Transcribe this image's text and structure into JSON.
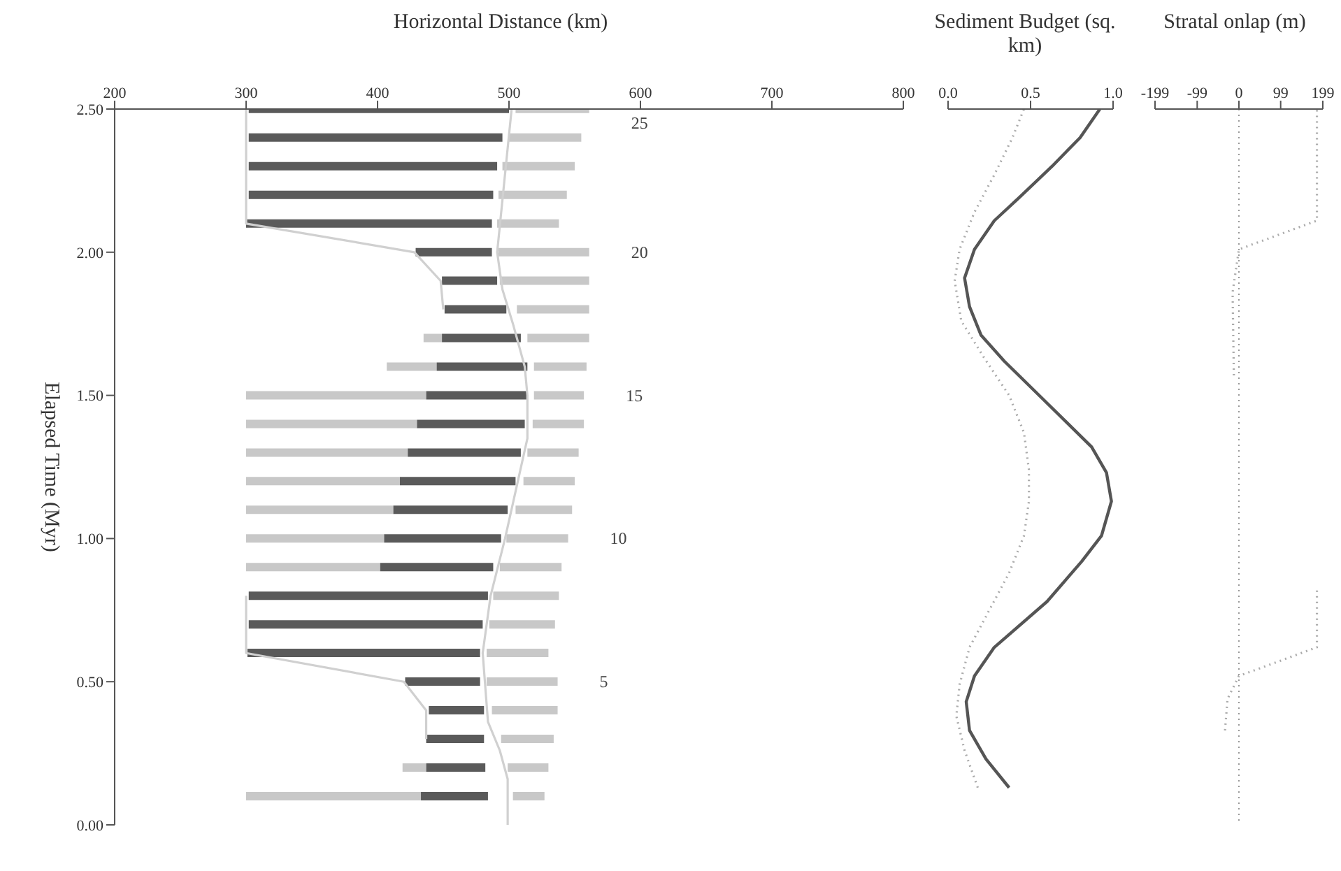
{
  "chart_data": [
    {
      "type": "bar",
      "orientation": "horizontal",
      "xlabel": "Horizontal Distance (km)",
      "ylabel": "Elapsed Time (Myr)",
      "x": [
        0.1,
        0.2,
        0.3,
        0.4,
        0.5,
        0.6,
        0.7,
        0.8,
        0.9,
        1.0,
        1.1,
        1.2,
        1.3,
        1.4,
        1.5,
        1.6,
        1.7,
        1.8,
        1.9,
        2.0,
        2.1,
        2.2,
        2.3,
        2.4,
        2.5
      ],
      "series": [
        {
          "color": "#c8c8c8",
          "base": [
            300,
            419,
            null,
            null,
            null,
            null,
            null,
            null,
            300,
            300,
            300,
            300,
            300,
            300,
            300,
            407,
            435,
            null,
            null,
            null,
            null,
            null,
            null,
            null,
            null
          ],
          "values": [
            133,
            18,
            null,
            null,
            null,
            null,
            null,
            null,
            102,
            105,
            112,
            117,
            123,
            130,
            137,
            38,
            14,
            null,
            null,
            null,
            null,
            null,
            null,
            null,
            null
          ]
        },
        {
          "color": "#5a5a5a",
          "base": [
            433,
            437,
            437,
            439,
            421,
            301,
            302,
            302,
            402,
            405,
            412,
            417,
            423,
            430,
            437,
            445,
            449,
            451,
            449,
            429,
            300,
            302,
            302,
            302,
            302
          ],
          "values": [
            51,
            45,
            44,
            42,
            57,
            177,
            178,
            182,
            86,
            89,
            87,
            88,
            86,
            82,
            77,
            69,
            60,
            47,
            42,
            58,
            187,
            186,
            189,
            193,
            198
          ]
        },
        {
          "color": "#c8c8c8",
          "base": [
            503,
            499,
            494,
            487,
            483,
            483,
            485,
            488,
            493,
            498,
            505,
            511,
            514,
            518,
            519,
            519,
            514,
            506,
            493,
            492,
            491,
            492,
            495,
            500,
            505
          ],
          "values": [
            24,
            31,
            40,
            50,
            54,
            47,
            50,
            50,
            47,
            47,
            43,
            39,
            39,
            39,
            38,
            40,
            47,
            55,
            68,
            69,
            47,
            52,
            55,
            55,
            56
          ]
        },
        {
          "type": "line",
          "color": "#d0d0d0",
          "x": [
            0.3,
            0.4,
            0.5,
            0.6,
            0.8,
            1.3,
            1.8,
            1.9,
            2.0,
            2.1,
            2.5
          ],
          "values": [
            437,
            437,
            420,
            300,
            300,
            null,
            450,
            448,
            428,
            300,
            300
          ]
        },
        {
          "type": "line",
          "color": "#d0d0d0",
          "x": [
            0.0,
            0.16,
            0.26,
            0.36,
            0.6,
            0.8,
            1.0,
            1.35,
            1.5,
            1.6,
            1.75,
            1.87,
            2.0,
            2.5
          ],
          "values": [
            499,
            499,
            493,
            484,
            480,
            486,
            497,
            514,
            514,
            512,
            503,
            495,
            491,
            502
          ]
        }
      ],
      "xlim": [
        200,
        800
      ],
      "xticks": [
        200,
        300,
        400,
        500,
        600,
        700,
        800
      ],
      "ylim": [
        0,
        2.5
      ],
      "yticks": [
        {
          "value": 0,
          "label": "0.00"
        },
        {
          "value": 0.5,
          "label": "0.50"
        },
        {
          "value": 1.0,
          "label": "1.00"
        },
        {
          "value": 1.5,
          "label": "1.50"
        },
        {
          "value": 2.0,
          "label": "2.00"
        },
        {
          "value": 2.5,
          "label": "2.50"
        }
      ],
      "marker": "none",
      "annotations": [
        {
          "text": "5",
          "x": 537,
          "y": 0.5
        },
        {
          "text": "10",
          "x": 545,
          "y": 1.0
        },
        {
          "text": "15",
          "x": 557,
          "y": 1.5
        },
        {
          "text": "20",
          "x": 561,
          "y": 2.0
        },
        {
          "text": "25",
          "x": 561,
          "y": 2.5
        }
      ]
    },
    {
      "type": "line",
      "orientation": "horizontal",
      "xlabel": "Sediment Budget (sq. km)",
      "series": [
        {
          "color": "#555555",
          "line_style": "solid",
          "x": [
            0.13,
            0.23,
            0.33,
            0.43,
            0.52,
            0.62,
            0.78,
            0.92,
            1.01,
            1.13,
            1.23,
            1.32,
            1.49,
            1.62,
            1.71,
            1.81,
            1.91,
            2.01,
            2.11,
            2.19,
            2.3,
            2.4,
            2.5
          ],
          "values": [
            0.37,
            0.23,
            0.13,
            0.11,
            0.16,
            0.28,
            0.6,
            0.81,
            0.93,
            0.99,
            0.96,
            0.87,
            0.57,
            0.34,
            0.2,
            0.13,
            0.1,
            0.16,
            0.28,
            0.43,
            0.63,
            0.8,
            0.92
          ]
        },
        {
          "color": "#aaaaaa",
          "line_style": "dotted",
          "x": [
            0.13,
            0.26,
            0.38,
            0.49,
            0.62,
            0.75,
            0.88,
            1.01,
            1.13,
            1.24,
            1.37,
            1.5,
            1.63,
            1.76,
            1.9,
            2.01,
            2.14,
            2.27,
            2.4,
            2.5
          ],
          "values": [
            0.18,
            0.1,
            0.05,
            0.07,
            0.13,
            0.25,
            0.37,
            0.46,
            0.49,
            0.49,
            0.46,
            0.37,
            0.22,
            0.08,
            0.04,
            0.07,
            0.16,
            0.28,
            0.39,
            0.46
          ]
        }
      ],
      "xlim": [
        0,
        1.0
      ],
      "xticks": [
        {
          "value": 0,
          "label": "0.0"
        },
        {
          "value": 0.5,
          "label": "0.5"
        },
        {
          "value": 1.0,
          "label": "1.0"
        }
      ],
      "ylim": [
        0,
        2.5
      ],
      "tick_labels": "x",
      "marker": "none"
    },
    {
      "type": "line",
      "orientation": "horizontal",
      "xlabel": "Stratal onlap (m)",
      "series": [
        {
          "color": "#aaaaaa",
          "line_style": "dotted",
          "x": [
            0.33,
            0.44,
            0.52,
            0.62,
            0.82,
            1.2,
            1.57,
            1.86,
            2.01,
            2.11,
            2.5
          ],
          "values": [
            -33,
            -27,
            0,
            185,
            185,
            null,
            -12,
            -15,
            0,
            185,
            185
          ]
        }
      ],
      "xlim": [
        -199,
        199
      ],
      "xticks": [
        -199,
        -99,
        0,
        99,
        199
      ],
      "ylim": [
        0,
        2.5
      ],
      "tick_labels": "x",
      "marker": "none",
      "ref_lines": [
        {
          "axis": "x",
          "value": 0,
          "color": "#999999",
          "line_style": "dotted"
        }
      ]
    }
  ]
}
